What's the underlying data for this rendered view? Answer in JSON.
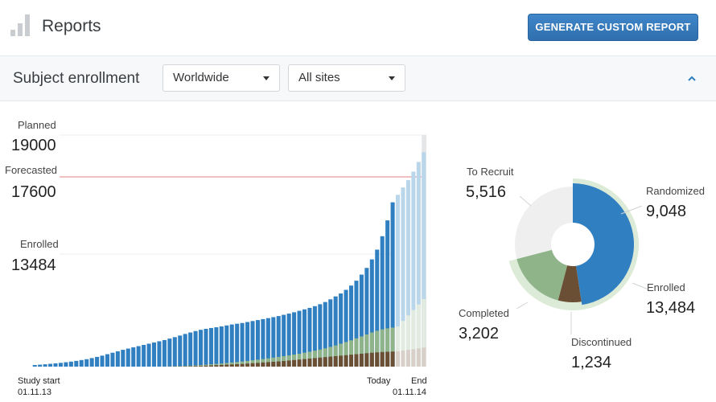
{
  "header": {
    "title": "Reports",
    "generate_button": "GENERATE CUSTOM REPORT"
  },
  "filters": {
    "section_title": "Subject enrollment",
    "region": {
      "value": "Worldwide"
    },
    "sites": {
      "value": "All sites"
    }
  },
  "icons": {
    "logo": "bar-chart-icon",
    "collapse": "chevron-up-icon",
    "caret": "caret-down-icon"
  },
  "colors": {
    "accent": "#2f7fc1",
    "enrolled_light": "#b9d6ea",
    "completed": "#8fb48a",
    "discontinued": "#6b4f34",
    "to_recruit": "#efefef",
    "forecast_line": "#e89b9b"
  },
  "chart_data": [
    {
      "type": "bar",
      "markers": [
        {
          "label": "Planned",
          "value": "19000"
        },
        {
          "label": "Forecasted",
          "value": "17600"
        },
        {
          "label": "Enrolled",
          "value": "13484"
        }
      ],
      "x_start": {
        "label": "Study start",
        "date": "01.11.13"
      },
      "x_today": {
        "label": "Today"
      },
      "x_end": {
        "label": "End",
        "date": "01.11.14"
      },
      "ylim": [
        0,
        19000
      ],
      "series": [
        {
          "values": [
            130,
            160,
            190,
            230,
            270,
            310,
            360,
            410,
            470,
            540,
            610,
            700,
            800,
            900,
            1020,
            1140,
            1260,
            1380,
            1480,
            1580,
            1680,
            1780,
            1880,
            1980,
            2080,
            2180,
            2300,
            2420,
            2550,
            2680,
            2800,
            2920,
            3020,
            3100,
            3170,
            3230,
            3300,
            3380,
            3460,
            3520,
            3580,
            3660,
            3740,
            3820,
            3900,
            3980,
            4060,
            4150,
            4250,
            4350,
            4460,
            4580,
            4700,
            4820,
            4960,
            5120,
            5300,
            5520,
            5760,
            6000,
            6300,
            6650,
            7050,
            7550,
            8100,
            8800,
            9600,
            10700,
            12000,
            13484
          ]
        },
        {
          "values": [
            0,
            0,
            0,
            0,
            0,
            0,
            0,
            0,
            0,
            0,
            0,
            0,
            0,
            0,
            0,
            0,
            0,
            0,
            0,
            0,
            0,
            0,
            0,
            0,
            0,
            0,
            0,
            0,
            0,
            0,
            0,
            0,
            0,
            0,
            0,
            0,
            0,
            0,
            0,
            0,
            0,
            0,
            0,
            0,
            0,
            0,
            0,
            0,
            0,
            0,
            0,
            0,
            0,
            0,
            0,
            0,
            0,
            0,
            0,
            0,
            0,
            0,
            0,
            0,
            0,
            0,
            0,
            0,
            0,
            0,
            14100,
            14700,
            15300,
            16000,
            16800,
            17600
          ]
        },
        {
          "values": [
            0,
            0,
            0,
            0,
            0,
            0,
            0,
            0,
            0,
            0,
            0,
            0,
            0,
            0,
            0,
            0,
            0,
            0,
            0,
            0,
            0,
            0,
            0,
            0,
            0,
            10,
            20,
            30,
            40,
            60,
            80,
            100,
            130,
            160,
            190,
            220,
            260,
            300,
            340,
            380,
            420,
            470,
            520,
            570,
            620,
            680,
            740,
            800,
            860,
            920,
            990,
            1060,
            1140,
            1220,
            1310,
            1400,
            1500,
            1620,
            1740,
            1880,
            2020,
            2160,
            2320,
            2480,
            2640,
            2800,
            2940,
            3060,
            3140,
            3202
          ]
        },
        {
          "values": [
            0,
            0,
            0,
            0,
            0,
            0,
            0,
            0,
            0,
            0,
            0,
            0,
            0,
            0,
            0,
            0,
            0,
            0,
            0,
            0,
            0,
            0,
            0,
            0,
            0,
            5,
            10,
            15,
            20,
            30,
            40,
            50,
            60,
            80,
            100,
            120,
            140,
            160,
            180,
            200,
            220,
            250,
            280,
            310,
            340,
            370,
            400,
            430,
            460,
            500,
            540,
            580,
            620,
            660,
            700,
            740,
            780,
            820,
            860,
            900,
            940,
            980,
            1020,
            1060,
            1100,
            1140,
            1170,
            1200,
            1220,
            1234
          ]
        }
      ]
    },
    {
      "type": "pie",
      "slices": [
        {
          "label": "Randomized",
          "value": "9,048",
          "num": 9048,
          "color": "#2f7fc1"
        },
        {
          "label": "Discontinued",
          "value": "1,234",
          "num": 1234,
          "color": "#6b4f34"
        },
        {
          "label": "Completed",
          "value": "3,202",
          "num": 3202,
          "color": "#8fb48a"
        },
        {
          "label": "To Recruit",
          "value": "5,516",
          "num": 5516,
          "color": "#efefef"
        }
      ],
      "outer": {
        "label": "Enrolled",
        "value": "13,484",
        "num": 13484,
        "color": "#dcebd8"
      }
    }
  ]
}
